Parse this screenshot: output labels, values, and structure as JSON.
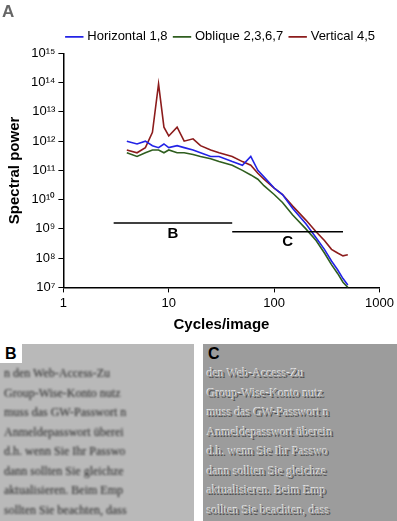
{
  "chart_data": {
    "type": "line",
    "title": "A",
    "x_label": "Cycles/image",
    "y_label": "Spectral power",
    "log": true,
    "grid": false,
    "legend": "upper right",
    "x": [
      4,
      5,
      6,
      7,
      8,
      9,
      10,
      12,
      14,
      17,
      20,
      25,
      30,
      40,
      50,
      60,
      70,
      80,
      100,
      120,
      150,
      200,
      250,
      300,
      350,
      400,
      450,
      500
    ],
    "series": [
      {
        "name": "Horizontal 1,8",
        "color": "#2323e6",
        "values": [
          1000000000000.0,
          800000000000.0,
          1000000000000.0,
          700000000000.0,
          600000000000.0,
          800000000000.0,
          600000000000.0,
          700000000000.0,
          600000000000.0,
          500000000000.0,
          400000000000.0,
          300000000000.0,
          300000000000.0,
          200000000000.0,
          150000000000.0,
          300000000000.0,
          100000000000.0,
          60000000000.0,
          25000000000.0,
          15000000000.0,
          5000000000.0,
          1500000000.0,
          500000000.0,
          200000000.0,
          80000000.0,
          40000000.0,
          20000000.0,
          12000000.0
        ]
      },
      {
        "name": "Oblique 2,3,6,7",
        "color": "#2f5e1f",
        "values": [
          400000000000.0,
          300000000000.0,
          400000000000.0,
          500000000000.0,
          500000000000.0,
          400000000000.0,
          500000000000.0,
          400000000000.0,
          400000000000.0,
          350000000000.0,
          300000000000.0,
          250000000000.0,
          200000000000.0,
          150000000000.0,
          100000000000.0,
          70000000000.0,
          50000000000.0,
          30000000000.0,
          15000000000.0,
          8000000000.0,
          3000000000.0,
          1000000000.0,
          400000000.0,
          150000000.0,
          60000000.0,
          30000000.0,
          15000000.0,
          10000000.0
        ]
      },
      {
        "name": "Vertical 4,5",
        "color": "#8c1c1c",
        "values": [
          500000000000.0,
          400000000000.0,
          600000000000.0,
          2000000000000.0,
          90000000000000.0,
          3000000000000.0,
          1500000000000.0,
          3000000000000.0,
          1000000000000.0,
          1200000000000.0,
          700000000000.0,
          500000000000.0,
          400000000000.0,
          300000000000.0,
          200000000000.0,
          150000000000.0,
          80000000000.0,
          50000000000.0,
          25000000000.0,
          15000000000.0,
          6000000000.0,
          2000000000.0,
          800000000.0,
          400000000.0,
          200000000.0,
          150000000.0,
          120000000.0,
          130000000.0
        ]
      }
    ],
    "xlim": [
      1,
      1000
    ],
    "xticks": [
      1,
      10,
      100,
      1000
    ],
    "ylim": [
      10000000.0,
      1000000000000000.0
    ],
    "yticks": [
      {
        "value": 10000000.0,
        "label": "10⁷"
      },
      {
        "value": 100000000.0,
        "label": "10⁸"
      },
      {
        "value": 1000000000.0,
        "label": "10⁹"
      },
      {
        "value": 10000000000.0,
        "label": "10¹⁰"
      },
      {
        "value": 100000000000.0,
        "label": "10¹¹"
      },
      {
        "value": 1000000000000.0,
        "label": "10¹²"
      },
      {
        "value": 10000000000000.0,
        "label": "10¹³"
      },
      {
        "value": 100000000000000.0,
        "label": "10¹⁴"
      },
      {
        "value": 1000000000000000.0,
        "label": "10¹⁵"
      }
    ],
    "annotations": [
      {
        "text": "B",
        "x": [
          3,
          40
        ],
        "y": 1600000000.0
      },
      {
        "text": "C",
        "x": [
          40,
          450
        ],
        "y": 800000000.0
      }
    ]
  },
  "panels": [
    {
      "label": "B",
      "lines": [
        "n den Web-Access-Zu",
        "Group-Wise-Konto nutz",
        "muss das GW-Passwort n",
        "Anmeldepasswort überei",
        "d.h. wenn Sie Ihr Passwo",
        "dann sollten Sie gleichze",
        "aktualisieren. Beim Emp",
        "sollten Sie beachten, dass"
      ]
    },
    {
      "label": "C",
      "lines": [
        "den Web-Access-Zu",
        "Group-Wise-Konto nutz",
        "muss das GW-Passwort n",
        "Anmeldepasswort überein",
        "d.h. wenn Sie Ihr Passwo",
        "dann sollten Sie gleichze",
        "aktualisieren. Beim Emp",
        "sollten Sie beachten, dass"
      ]
    }
  ]
}
